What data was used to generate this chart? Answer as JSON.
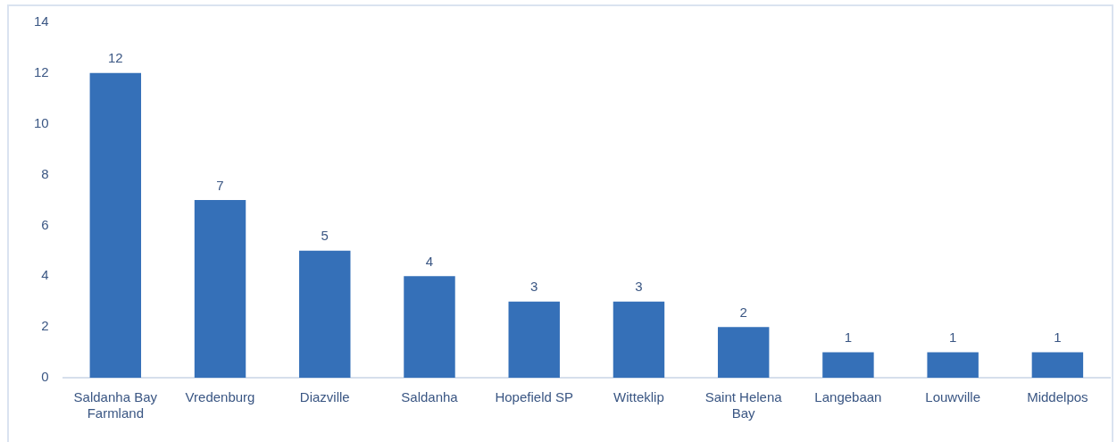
{
  "chart_data": {
    "type": "bar",
    "categories": [
      "Saldanha Bay Farmland",
      "Vredenburg",
      "Diazville",
      "Saldanha",
      "Hopefield SP",
      "Witteklip",
      "Saint Helena Bay",
      "Langebaan",
      "Louwville",
      "Middelpos"
    ],
    "values": [
      12,
      7,
      5,
      4,
      3,
      3,
      2,
      1,
      1,
      1
    ],
    "color": "#3570b8",
    "ylim": [
      0,
      14
    ],
    "yticks": [
      0,
      2,
      4,
      6,
      8,
      10,
      12,
      14
    ],
    "data_labels": true
  }
}
